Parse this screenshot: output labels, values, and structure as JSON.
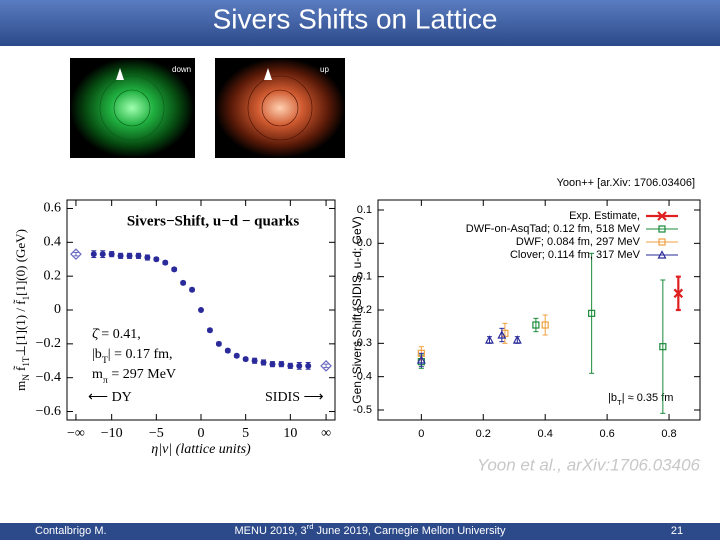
{
  "header": {
    "title": "Sivers Shifts on Lattice"
  },
  "images": {
    "down_label": "down",
    "up_label": "up"
  },
  "citation": "Yoon++ [ar.Xiv: 1706.03406]",
  "watermark": "Yoon et al., arXiv:1706.03406",
  "chart_data": [
    {
      "type": "scatter",
      "title": "Sivers−Shift, u−d − quarks",
      "x_label": "η|v|  (lattice units)",
      "y_label": [
        "m",
        "N",
        " f̃",
        "1T",
        "⊥[1](1) / f̃",
        "1",
        "[1](0)  (GeV)"
      ],
      "annotations": [
        [
          "ζ̂ = 0.41,"
        ],
        [
          "|b",
          "T",
          "| = 0.17 fm,"
        ],
        [
          "m",
          "π",
          " = 297 MeV"
        ],
        [
          "⟵ DY"
        ],
        [
          "SIDIS ⟶"
        ]
      ],
      "xlim": [
        -15,
        15
      ],
      "ylim": [
        -0.65,
        0.65
      ],
      "xticks": [
        {
          "value": -14,
          "label": "−∞"
        },
        {
          "value": -10,
          "label": "−10"
        },
        {
          "value": -5,
          "label": "−5"
        },
        0,
        5,
        10,
        {
          "value": 14,
          "label": "∞"
        }
      ],
      "yticks": [
        0.6,
        0.4,
        0.2,
        {
          "value": 0,
          "label": "0"
        },
        {
          "value": -0.2,
          "label": "−0.2"
        },
        {
          "value": -0.4,
          "label": "−0.4"
        },
        {
          "value": -0.6,
          "label": "−0.6"
        }
      ],
      "series": [
        {
          "color": "#2a2a9a",
          "marker": "circle",
          "x": [
            -12,
            -11,
            -10,
            -9,
            -8,
            -7,
            -6,
            -5,
            -4,
            -3,
            -2,
            -1,
            0,
            1,
            2,
            3,
            4,
            5,
            6,
            7,
            8,
            9,
            10,
            11,
            12
          ],
          "values": [
            0.33,
            0.33,
            0.33,
            0.32,
            0.32,
            0.32,
            0.31,
            0.3,
            0.28,
            0.24,
            0.16,
            0.12,
            0,
            -0.12,
            -0.2,
            -0.24,
            -0.27,
            -0.29,
            -0.3,
            -0.31,
            -0.32,
            -0.32,
            -0.33,
            -0.33,
            -0.33
          ],
          "errors": [
            0.02,
            0.02,
            0.015,
            0.015,
            0.015,
            0.015,
            0.015,
            0.01,
            0.01,
            0.01,
            0.01,
            0.01,
            0.005,
            0.01,
            0.01,
            0.01,
            0.01,
            0.01,
            0.015,
            0.015,
            0.015,
            0.015,
            0.015,
            0.02,
            0.02
          ]
        },
        {
          "color": "#6a6ac0",
          "marker": "diamond",
          "x": [
            -14,
            14
          ],
          "values": [
            0.33,
            -0.33
          ],
          "errors": [
            0.01,
            0.01
          ]
        }
      ]
    },
    {
      "type": "scatter",
      "y_label": [
        "Gen. Sivers Shift (SIDIS, u-d; GeV)"
      ],
      "annotations": [
        [
          "|b",
          "T",
          "| ≈ 0.35 fm"
        ]
      ],
      "legend": "upper right",
      "xlim": [
        -0.14,
        0.9
      ],
      "ylim": [
        -0.53,
        0.13
      ],
      "xticks": [
        0,
        0.2,
        0.4,
        0.6,
        0.8
      ],
      "yticks": [
        0.1,
        {
          "value": 0,
          "label": "0.0"
        },
        -0.1,
        -0.2,
        -0.3,
        -0.4,
        -0.5
      ],
      "series": [
        {
          "name": "Exp. Estimate,",
          "color": "#e02020",
          "marker": "x",
          "x": [
            0.83
          ],
          "values": [
            -0.15
          ],
          "errors": [
            0.05
          ]
        },
        {
          "name": "DWF-on-AsqTad; 0.12 fm, 518 MeV",
          "color": "#1a8a3a",
          "marker": "square",
          "x": [
            0,
            0.37,
            0.55,
            0.78
          ],
          "values": [
            -0.355,
            -0.245,
            -0.21,
            -0.31
          ],
          "errors": [
            0.02,
            0.02,
            0.18,
            0.2
          ]
        },
        {
          "name": "DWF; 0.084 fm, 297 MeV",
          "color": "#f0a040",
          "marker": "square",
          "x": [
            0,
            0.27,
            0.4
          ],
          "values": [
            -0.33,
            -0.27,
            -0.245
          ],
          "errors": [
            0.02,
            0.03,
            0.03
          ]
        },
        {
          "name": "Clover; 0.114 fm, 317 MeV",
          "color": "#2a2a9a",
          "marker": "triangle",
          "x": [
            0,
            0.22,
            0.26,
            0.31
          ],
          "values": [
            -0.35,
            -0.29,
            -0.275,
            -0.29
          ],
          "errors": [
            0.02,
            0.01,
            0.02,
            0.01
          ]
        }
      ]
    }
  ],
  "footer": {
    "author": "Contalbrigo M.",
    "event": [
      "MENU 2019, 3",
      "rd",
      " June 2019, Carnegie Mellon University"
    ],
    "page": "21"
  }
}
